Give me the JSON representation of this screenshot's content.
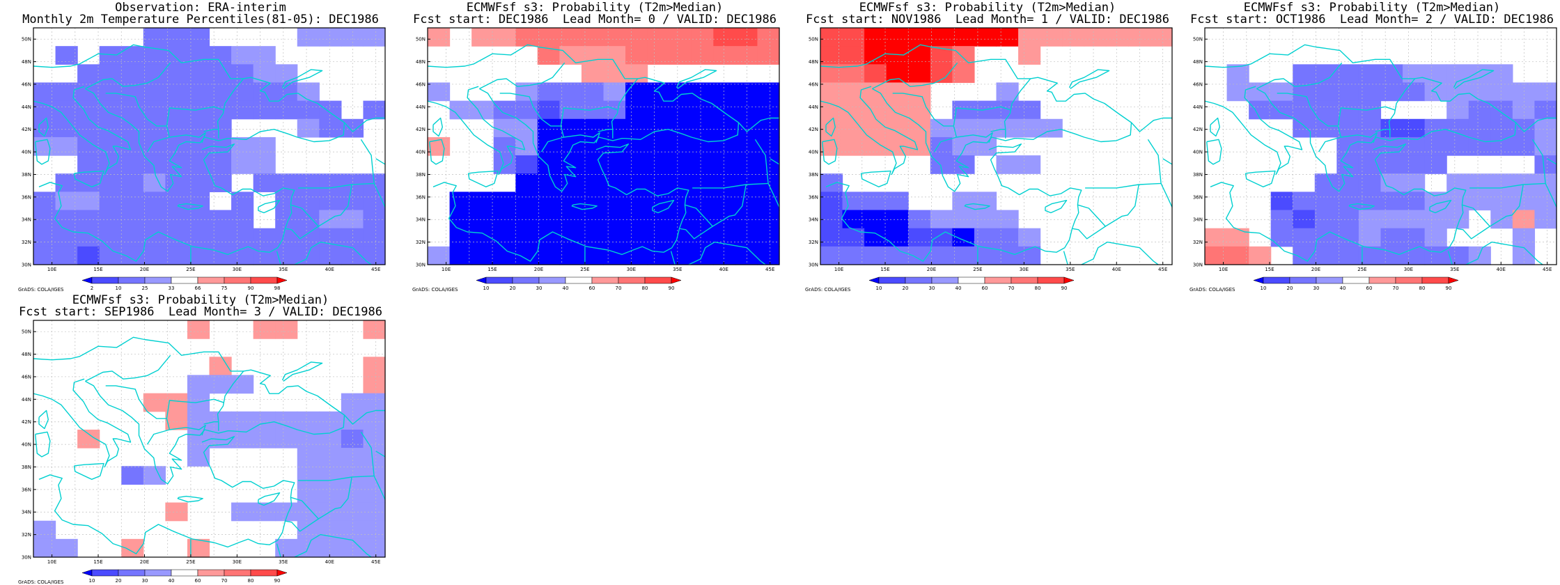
{
  "palette": {
    "obs": {
      "c1": "#0000ff",
      "c2": "#4b4bff",
      "c3": "#7575ff",
      "c4": "#9999ff",
      "c5": "#ffffff",
      "c6": "#ff9999",
      "c7": "#ff7575",
      "c8": "#ff4b4b",
      "c9": "#ff0000"
    },
    "prob": {
      "c1": "#0000ff",
      "c2": "#4b4bff",
      "c3": "#7575ff",
      "c4": "#9999ff",
      "c5": "#ffffff",
      "c6": "#ff9999",
      "c7": "#ff7575",
      "c8": "#ff4b4b",
      "c9": "#ff0000"
    }
  },
  "map": {
    "lon_range": [
      8,
      46
    ],
    "lat_range": [
      30,
      51
    ],
    "lon_ticks": [
      "10E",
      "15E",
      "20E",
      "25E",
      "30E",
      "35E",
      "40E",
      "45E"
    ],
    "lat_ticks": [
      "30N",
      "32N",
      "34N",
      "36N",
      "38N",
      "40N",
      "42N",
      "44N",
      "46N",
      "48N",
      "50N"
    ],
    "coast_color": "#00d0d0",
    "grid": "dotted"
  },
  "credit": "GrADS: COLA/IGES",
  "panels": [
    {
      "line1": "Observation: ERA-interim",
      "line2": "Monthly 2m Temperature Percentiles(81-05): DEC1986",
      "colorbar": {
        "labels": [
          "2",
          "10",
          "25",
          "33",
          "66",
          "75",
          "90",
          "98"
        ],
        "colors": [
          "#0000ff",
          "#4b4bff",
          "#7575ff",
          "#9999ff",
          "#ffffff",
          "#ff9999",
          "#ff7575",
          "#ff4b4b",
          "#ff0000"
        ]
      },
      "grid": [
        "5555533355554444",
        "5353333334455555",
        "5533333333445555",
        "3333333333334555",
        "3333333333333353",
        "3333333335554335",
        "4433333334455555",
        "5533333334455555",
        "5333343335333333",
        "3443333353533333",
        "3333333333533443",
        "3333333333333333",
        "3323333333333333"
      ]
    },
    {
      "line1": "ECMWFsf s3: Probability (T2m>Median)",
      "line2": "Fcst start: DEC1986  Lead Month= 0 / VALID: DEC1986",
      "colorbar": {
        "labels": [
          "10",
          "20",
          "30",
          "40",
          "60",
          "70",
          "80",
          "90"
        ],
        "colors": [
          "#0000ff",
          "#4b4bff",
          "#7575ff",
          "#9999ff",
          "#ffffff",
          "#ff9999",
          "#ff7575",
          "#ff4b4b",
          "#ff0000"
        ]
      },
      "grid": [
        "6566777777777887",
        "5555576667777777",
        "5555555666555555",
        "4555433341111111",
        "5443323331111111",
        "5554411111111111",
        "6553411111111111",
        "5553211111111111",
        "5555111111111111",
        "5111111111111111",
        "5111111111111111",
        "5111111111111111",
        "4111111111111111"
      ]
    },
    {
      "line1": "ECMWFsf s3: Probability (T2m>Median)",
      "line2": "Fcst start: NOV1986  Lead Month= 1 / VALID: DEC1986",
      "colorbar": {
        "labels": [
          "10",
          "20",
          "30",
          "40",
          "60",
          "70",
          "80",
          "90"
        ],
        "colors": [
          "#0000ff",
          "#4b4bff",
          "#7575ff",
          "#9999ff",
          "#ffffff",
          "#ff9999",
          "#ff7575",
          "#ff4b4b",
          "#ff0000"
        ]
      },
      "grid": [
        "8899999996666666",
        "8899987556555555",
        "7789987555555555",
        "6666655545555555",
        "6666653333555555",
        "6666644444455555",
        "6666634455555555",
        "5555533544555555",
        "3555555555555555",
        "2333554455555555",
        "2111344445555555",
        "2211221334555555",
        "3333333333555555"
      ]
    },
    {
      "line1": "ECMWFsf s3: Probability (T2m>Median)",
      "line2": "Fcst start: OCT1986  Lead Month= 2 / VALID: DEC1986",
      "colorbar": {
        "labels": [
          "10",
          "20",
          "30",
          "40",
          "60",
          "70",
          "80",
          "90"
        ],
        "colors": [
          "#0000ff",
          "#4b4bff",
          "#7575ff",
          "#9999ff",
          "#ffffff",
          "#ff9999",
          "#ff7575",
          "#ff4b4b",
          "#ff0000"
        ]
      },
      "grid": [
        "5555555555555555",
        "5555555555555555",
        "5455333334444455",
        "5444333333444444",
        "5533333355543343",
        "5555333322333334",
        "5555553333333334",
        "5555553333355553",
        "5555533344544444",
        "5552333333444444",
        "5553233444445464",
        "6653333433455545",
        "7765333333334545"
      ]
    },
    {
      "line1": "ECMWFsf s3: Probability (T2m>Median)",
      "line2": "Fcst start: SEP1986  Lead Month= 3 / VALID: DEC1986",
      "colorbar": {
        "labels": [
          "10",
          "20",
          "30",
          "40",
          "60",
          "70",
          "80",
          "90"
        ],
        "colors": [
          "#0000ff",
          "#4b4bff",
          "#7575ff",
          "#9999ff",
          "#ffffff",
          "#ff9999",
          "#ff7575",
          "#ff4b4b",
          "#ff0000"
        ]
      },
      "grid": [
        "5555555655665556",
        "5555555555555555",
        "5555555565555556",
        "5555555444555556",
        "5555566455555544",
        "5555556444444444",
        "5565555444444434",
        "5555555455554444",
        "5555345555554444",
        "5555555555554444",
        "5555556554444444",
        "4555555555554444",
        "4455655655544444"
      ]
    }
  ]
}
